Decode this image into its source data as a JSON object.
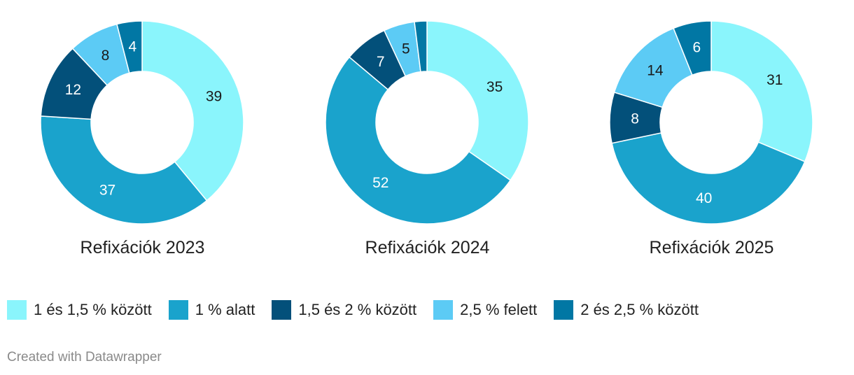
{
  "legend": [
    {
      "label": "1 és 1,5 % között",
      "color": "#8af5fc"
    },
    {
      "label": "1 % alatt",
      "color": "#1aa3cc"
    },
    {
      "label": "1,5 és 2 % között",
      "color": "#03507a"
    },
    {
      "label": "2,5 % felett",
      "color": "#5ccbf5"
    },
    {
      "label": "2 és 2,5 % között",
      "color": "#0177a4"
    }
  ],
  "credit": "Created with Datawrapper",
  "chart_data": [
    {
      "type": "pie",
      "title": "Refixációk 2023",
      "series": [
        {
          "name": "1 és 1,5 % között",
          "value": 39,
          "label": "39"
        },
        {
          "name": "1 % alatt",
          "value": 37,
          "label": "37"
        },
        {
          "name": "1,5 és 2 % között",
          "value": 12,
          "label": "12"
        },
        {
          "name": "2,5 % felett",
          "value": 8,
          "label": "8"
        },
        {
          "name": "2 és 2,5 % között",
          "value": 4,
          "label": "4"
        }
      ]
    },
    {
      "type": "pie",
      "title": "Refixációk 2024",
      "series": [
        {
          "name": "1 és 1,5 % között",
          "value": 35,
          "label": "35"
        },
        {
          "name": "1 % alatt",
          "value": 52,
          "label": "52"
        },
        {
          "name": "1,5 és 2 % között",
          "value": 7,
          "label": "7"
        },
        {
          "name": "2,5 % felett",
          "value": 5,
          "label": "5"
        },
        {
          "name": "2 és 2,5 % között",
          "value": 2,
          "label": ""
        }
      ]
    },
    {
      "type": "pie",
      "title": "Refixációk 2025",
      "series": [
        {
          "name": "1 és 1,5 % között",
          "value": 31,
          "label": "31"
        },
        {
          "name": "1 % alatt",
          "value": 40,
          "label": "40"
        },
        {
          "name": "1,5 és 2 % között",
          "value": 8,
          "label": "8"
        },
        {
          "name": "2,5 % felett",
          "value": 14,
          "label": "14"
        },
        {
          "name": "2 és 2,5 % között",
          "value": 6,
          "label": "6"
        }
      ]
    }
  ]
}
